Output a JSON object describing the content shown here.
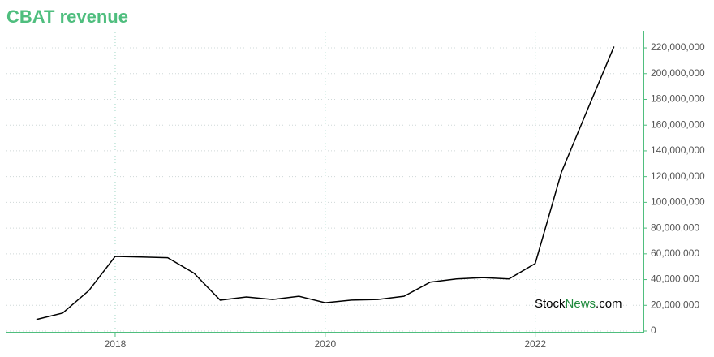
{
  "chart_data": {
    "type": "line",
    "title": "CBAT revenue",
    "watermark": [
      "Stock",
      "News",
      ".com"
    ],
    "x": [
      2017.25,
      2017.5,
      2017.75,
      2018,
      2018.25,
      2018.5,
      2018.75,
      2019,
      2019.25,
      2019.5,
      2019.75,
      2020,
      2020.25,
      2020.5,
      2020.75,
      2021,
      2021.25,
      2021.5,
      2021.75,
      2022,
      2022.25,
      2022.5,
      2022.75
    ],
    "series": [
      {
        "name": "Revenue",
        "color": "#000000",
        "values": [
          9000000,
          14000000,
          31500000,
          58000000,
          57500000,
          57000000,
          45000000,
          24000000,
          26500000,
          24500000,
          27000000,
          22000000,
          24000000,
          24500000,
          27000000,
          38000000,
          40500000,
          41500000,
          40500000,
          52500000,
          123500000,
          172500000,
          221000000
        ]
      }
    ],
    "xlim": [
      2016.965,
      2023.03
    ],
    "xticks": [
      2018,
      2020,
      2022
    ],
    "ylim": [
      0,
      232000000
    ],
    "yticks": [
      0,
      {
        "value": 20000000,
        "label": "20,000,000"
      },
      {
        "value": 40000000,
        "label": "40,000,000"
      },
      {
        "value": 60000000,
        "label": "60,000,000"
      },
      {
        "value": 80000000,
        "label": "80,000,000"
      },
      {
        "value": 100000000,
        "label": "100,000,000"
      },
      {
        "value": 120000000,
        "label": "120,000,000"
      },
      {
        "value": 140000000,
        "label": "140,000,000"
      },
      {
        "value": 160000000,
        "label": "160,000,000"
      },
      {
        "value": 180000000,
        "label": "180,000,000"
      },
      {
        "value": 200000000,
        "label": "200,000,000"
      },
      {
        "value": 220000000,
        "label": "220,000,000"
      }
    ],
    "grid": true,
    "axis_color": "#4fbe7e"
  }
}
